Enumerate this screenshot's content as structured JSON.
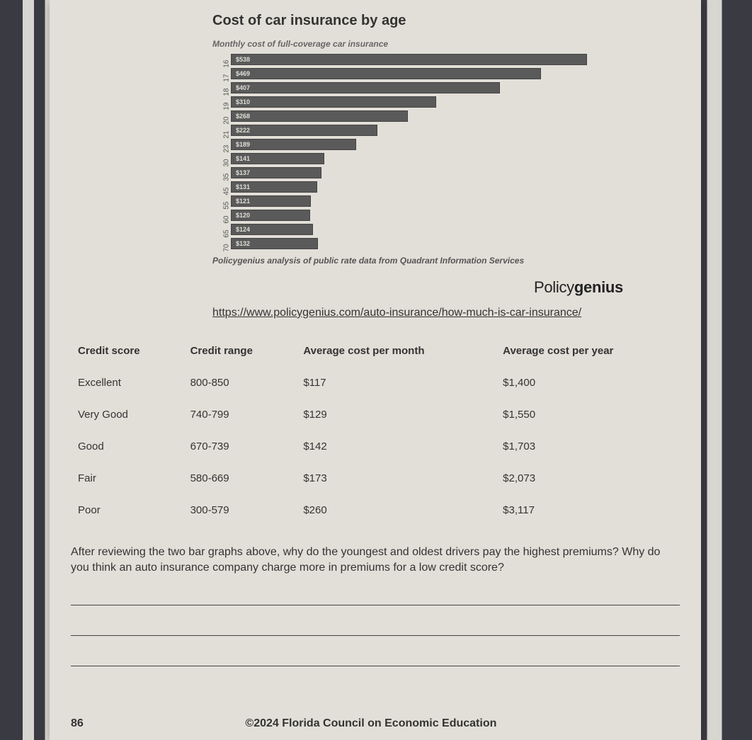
{
  "chart": {
    "title": "Cost of car insurance by age",
    "subtitle": "Monthly cost of full-coverage car insurance",
    "type": "bar",
    "bar_color": "#5a5a5a",
    "bar_border": "#444444",
    "background_color": "#e2dfd8",
    "label_color": "#e0ded6",
    "max_value": 550,
    "rows": [
      {
        "age": "16",
        "label": "$538",
        "value": 538
      },
      {
        "age": "17",
        "label": "$469",
        "value": 469
      },
      {
        "age": "18",
        "label": "$407",
        "value": 407
      },
      {
        "age": "19",
        "label": "$310",
        "value": 310
      },
      {
        "age": "20",
        "label": "$268",
        "value": 268
      },
      {
        "age": "21",
        "label": "$222",
        "value": 222
      },
      {
        "age": "23",
        "label": "$189",
        "value": 189
      },
      {
        "age": "30",
        "label": "$141",
        "value": 141
      },
      {
        "age": "35",
        "label": "$137",
        "value": 137
      },
      {
        "age": "45",
        "label": "$131",
        "value": 131
      },
      {
        "age": "55",
        "label": "$121",
        "value": 121
      },
      {
        "age": "60",
        "label": "$120",
        "value": 120
      },
      {
        "age": "65",
        "label": "$124",
        "value": 124
      },
      {
        "age": "70",
        "label": "$132",
        "value": 132
      }
    ],
    "source": "Policygenius analysis of public rate data from Quadrant Information Services"
  },
  "brand_light": "Policy",
  "brand_bold": "genius",
  "url": "https://www.policygenius.com/auto-insurance/how-much-is-car-insurance/",
  "table": {
    "columns": [
      "Credit score",
      "Credit range",
      "Average cost per month",
      "Average cost per year"
    ],
    "rows": [
      [
        "Excellent",
        "800-850",
        "$117",
        "$1,400"
      ],
      [
        "Very Good",
        "740-799",
        "$129",
        "$1,550"
      ],
      [
        "Good",
        "670-739",
        "$142",
        "$1,703"
      ],
      [
        "Fair",
        "580-669",
        "$173",
        "$2,073"
      ],
      [
        "Poor",
        "300-579",
        "$260",
        "$3,117"
      ]
    ]
  },
  "question": "After reviewing the two bar graphs above, why do the youngest and oldest drivers pay the highest premiums? Why do you think an auto insurance company charge more in premiums for a low credit score?",
  "page_number": "86",
  "copyright": "©2024 Florida Council on Economic Education"
}
